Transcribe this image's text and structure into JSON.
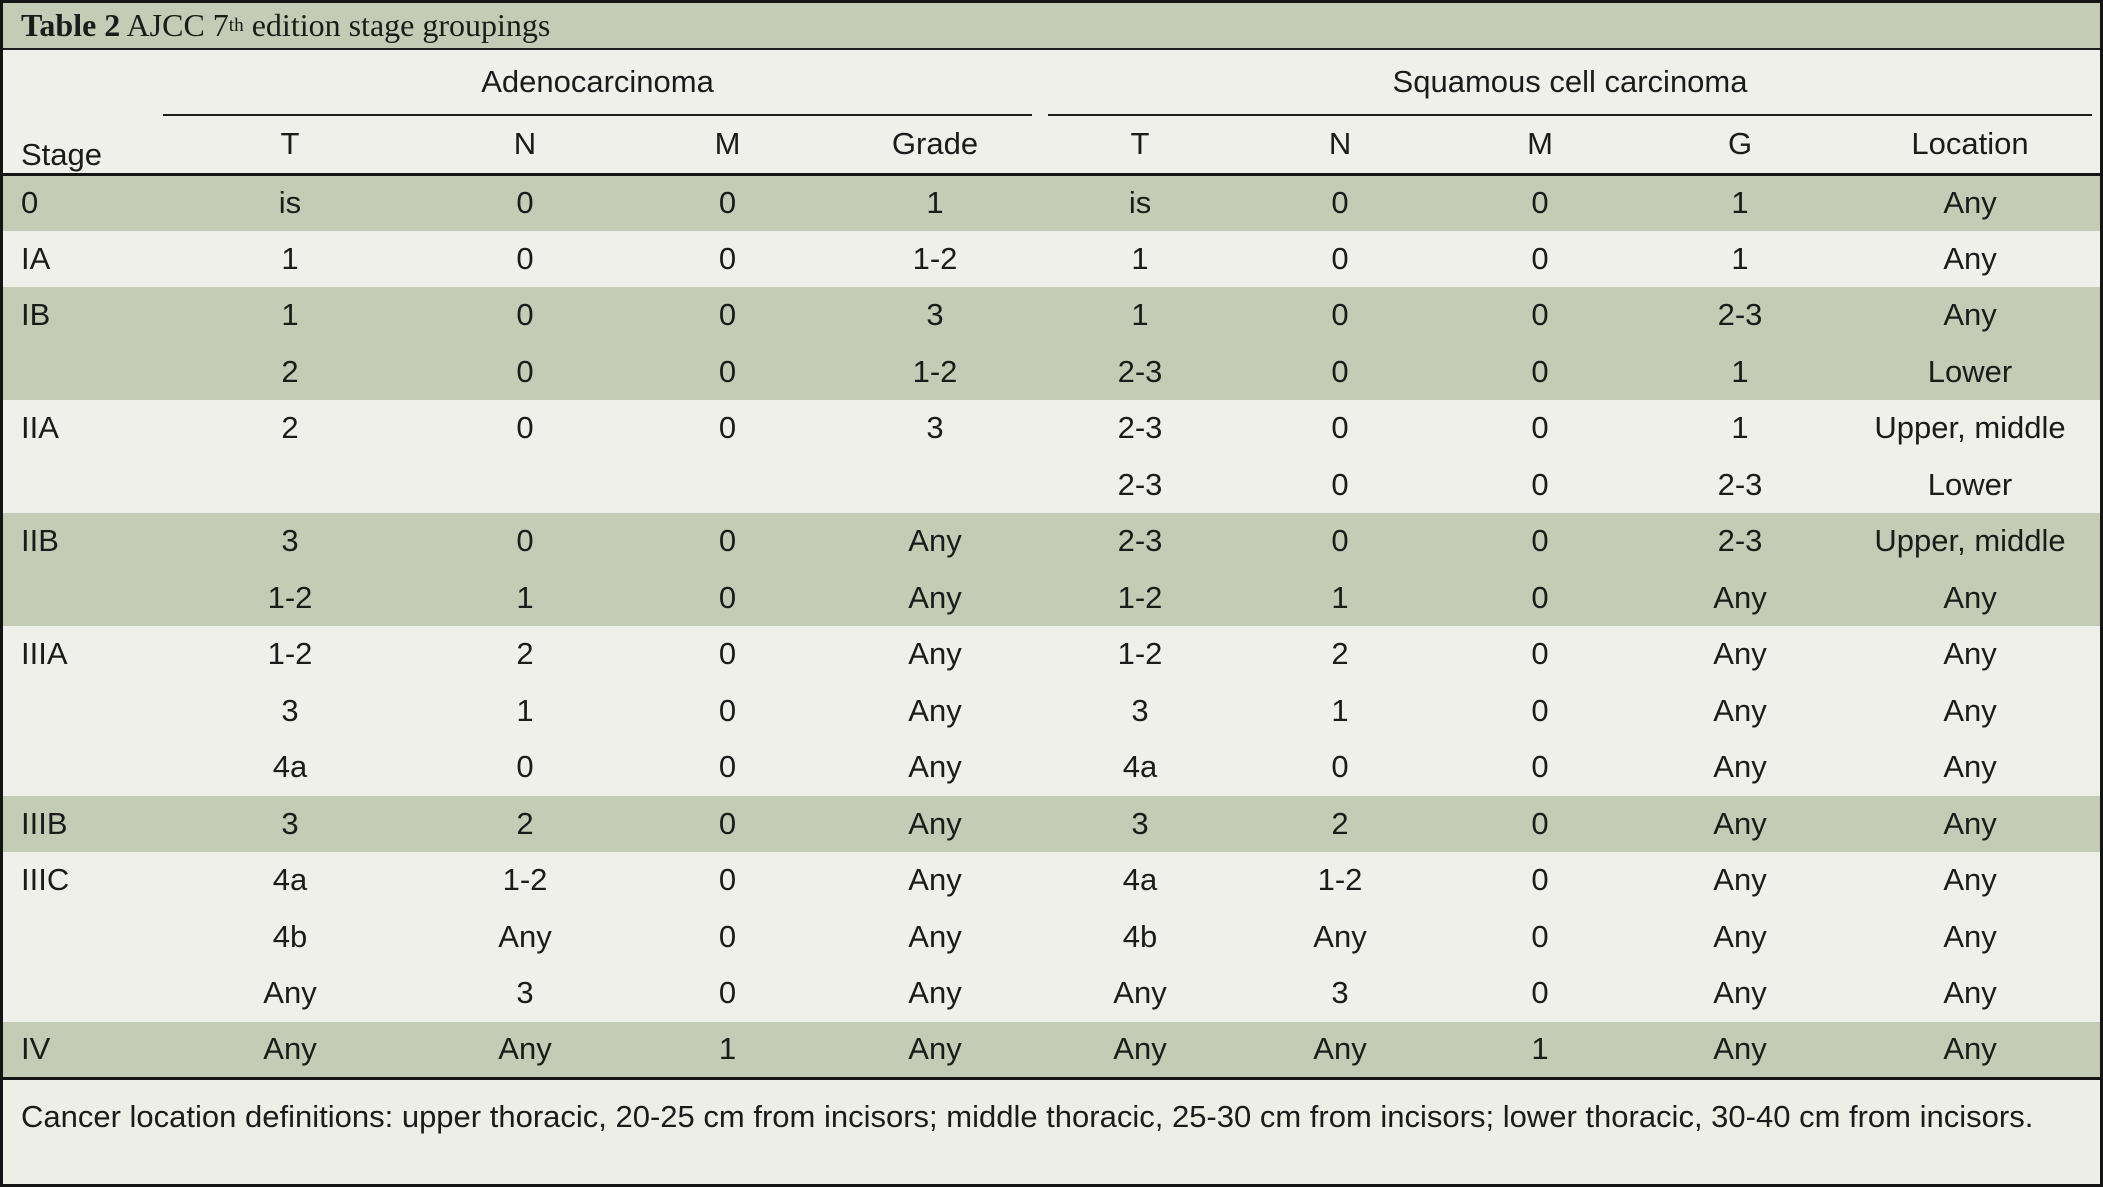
{
  "title": {
    "bold": "Table 2",
    "pre_sup": " AJCC 7",
    "sup": "th",
    "post_sup": " edition stage groupings"
  },
  "header": {
    "stage_label": "Stage",
    "groups": [
      {
        "label": "Adenocarcinoma",
        "columns": [
          "T",
          "N",
          "M",
          "Grade"
        ]
      },
      {
        "label": "Squamous cell carcinoma",
        "columns": [
          "T",
          "N",
          "M",
          "G",
          "Location"
        ]
      }
    ]
  },
  "rows": [
    {
      "stage": "0",
      "band": "green",
      "adeno": [
        "is",
        "0",
        "0",
        "1"
      ],
      "squamous": [
        "is",
        "0",
        "0",
        "1",
        "Any"
      ]
    },
    {
      "stage": "IA",
      "band": "light",
      "adeno": [
        "1",
        "0",
        "0",
        "1-2"
      ],
      "squamous": [
        "1",
        "0",
        "0",
        "1",
        "Any"
      ]
    },
    {
      "stage": "IB",
      "band": "green",
      "adeno": [
        "1",
        "0",
        "0",
        "3"
      ],
      "squamous": [
        "1",
        "0",
        "0",
        "2-3",
        "Any"
      ]
    },
    {
      "stage": "",
      "band": "green",
      "adeno": [
        "2",
        "0",
        "0",
        "1-2"
      ],
      "squamous": [
        "2-3",
        "0",
        "0",
        "1",
        "Lower"
      ]
    },
    {
      "stage": "IIA",
      "band": "light",
      "adeno": [
        "2",
        "0",
        "0",
        "3"
      ],
      "squamous": [
        "2-3",
        "0",
        "0",
        "1",
        "Upper, middle"
      ]
    },
    {
      "stage": "",
      "band": "light",
      "adeno": [
        "",
        "",
        "",
        ""
      ],
      "squamous": [
        "2-3",
        "0",
        "0",
        "2-3",
        "Lower"
      ]
    },
    {
      "stage": "IIB",
      "band": "green",
      "adeno": [
        "3",
        "0",
        "0",
        "Any"
      ],
      "squamous": [
        "2-3",
        "0",
        "0",
        "2-3",
        "Upper, middle"
      ]
    },
    {
      "stage": "",
      "band": "green",
      "adeno": [
        "1-2",
        "1",
        "0",
        "Any"
      ],
      "squamous": [
        "1-2",
        "1",
        "0",
        "Any",
        "Any"
      ]
    },
    {
      "stage": "IIIA",
      "band": "light",
      "adeno": [
        "1-2",
        "2",
        "0",
        "Any"
      ],
      "squamous": [
        "1-2",
        "2",
        "0",
        "Any",
        "Any"
      ]
    },
    {
      "stage": "",
      "band": "light",
      "adeno": [
        "3",
        "1",
        "0",
        "Any"
      ],
      "squamous": [
        "3",
        "1",
        "0",
        "Any",
        "Any"
      ]
    },
    {
      "stage": "",
      "band": "light",
      "adeno": [
        "4a",
        "0",
        "0",
        "Any"
      ],
      "squamous": [
        "4a",
        "0",
        "0",
        "Any",
        "Any"
      ]
    },
    {
      "stage": "IIIB",
      "band": "green",
      "adeno": [
        "3",
        "2",
        "0",
        "Any"
      ],
      "squamous": [
        "3",
        "2",
        "0",
        "Any",
        "Any"
      ]
    },
    {
      "stage": "IIIC",
      "band": "light",
      "adeno": [
        "4a",
        "1-2",
        "0",
        "Any"
      ],
      "squamous": [
        "4a",
        "1-2",
        "0",
        "Any",
        "Any"
      ]
    },
    {
      "stage": "",
      "band": "light",
      "adeno": [
        "4b",
        "Any",
        "0",
        "Any"
      ],
      "squamous": [
        "4b",
        "Any",
        "0",
        "Any",
        "Any"
      ]
    },
    {
      "stage": "",
      "band": "light",
      "adeno": [
        "Any",
        "3",
        "0",
        "Any"
      ],
      "squamous": [
        "Any",
        "3",
        "0",
        "Any",
        "Any"
      ]
    },
    {
      "stage": "IV",
      "band": "green",
      "adeno": [
        "Any",
        "Any",
        "1",
        "Any"
      ],
      "squamous": [
        "Any",
        "Any",
        "1",
        "Any",
        "Any"
      ]
    }
  ],
  "footnote": "Cancer location definitions: upper thoracic, 20-25 cm from incisors; middle thoracic, 25-30 cm from incisors; lower thoracic, 30-40 cm from incisors.",
  "colors": {
    "band_green": "#c5ccb5",
    "band_light": "#eef0e9",
    "footer_bg": "#edefe7",
    "rule": "#141414"
  }
}
